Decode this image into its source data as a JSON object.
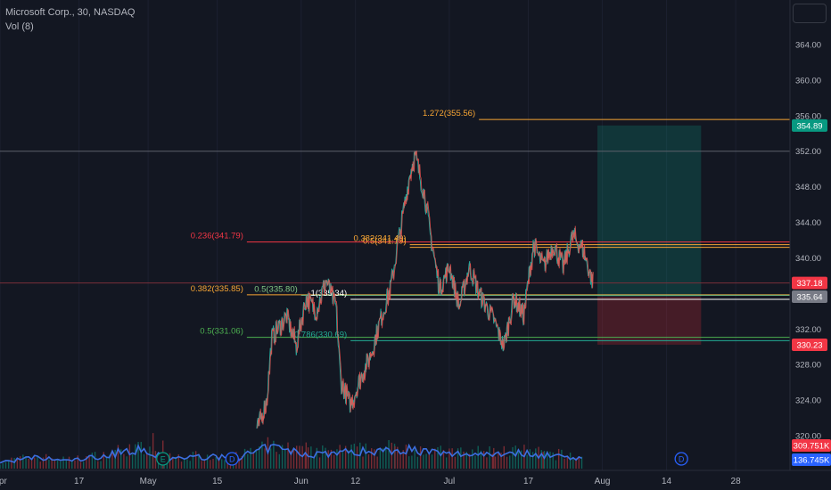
{
  "legend": {
    "symbol_line": "Microsoft Corp., 30, NASDAQ",
    "volume_line": "Vol (8)"
  },
  "chart_data": {
    "type": "candlestick",
    "symbol": "Microsoft Corp.",
    "interval": "30",
    "exchange": "NASDAQ",
    "y_axis": {
      "ticks": [
        "364.00",
        "360.00",
        "356.00",
        "352.00",
        "348.00",
        "344.00",
        "340.00",
        "336.00",
        "332.00",
        "328.00",
        "324.00",
        "320.00"
      ],
      "range": [
        318.5,
        366.8
      ]
    },
    "x_axis": {
      "tick_labels": [
        "Apr",
        "17",
        "May",
        "15",
        "Jun",
        "12",
        "Jul",
        "17",
        "Aug",
        "14",
        "28"
      ],
      "start": "2023-04-01",
      "end": "2023-09-08"
    },
    "price_path": [
      [
        "2023-05-23",
        320.5
      ],
      [
        "2023-05-25",
        324.0
      ],
      [
        "2023-05-26",
        331.0
      ],
      [
        "2023-05-29",
        333.5
      ],
      [
        "2023-05-31",
        330.0
      ],
      [
        "2023-06-01",
        333.0
      ],
      [
        "2023-06-02",
        335.5
      ],
      [
        "2023-06-04",
        334.0
      ],
      [
        "2023-06-06",
        337.5
      ],
      [
        "2023-06-08",
        334.5
      ],
      [
        "2023-06-09",
        326.0
      ],
      [
        "2023-06-11",
        323.5
      ],
      [
        "2023-06-13",
        326.5
      ],
      [
        "2023-06-15",
        329.0
      ],
      [
        "2023-06-17",
        333.0
      ],
      [
        "2023-06-19",
        336.5
      ],
      [
        "2023-06-21",
        343.0
      ],
      [
        "2023-06-23",
        349.5
      ],
      [
        "2023-06-24",
        351.5
      ],
      [
        "2023-06-26",
        347.0
      ],
      [
        "2023-06-27",
        343.0
      ],
      [
        "2023-06-29",
        336.5
      ],
      [
        "2023-07-01",
        339.0
      ],
      [
        "2023-07-03",
        334.5
      ],
      [
        "2023-07-05",
        339.0
      ],
      [
        "2023-07-07",
        336.0
      ],
      [
        "2023-07-10",
        333.0
      ],
      [
        "2023-07-12",
        330.0
      ],
      [
        "2023-07-14",
        335.5
      ],
      [
        "2023-07-16",
        333.5
      ],
      [
        "2023-07-18",
        341.5
      ],
      [
        "2023-07-20",
        339.0
      ],
      [
        "2023-07-22",
        341.5
      ],
      [
        "2023-07-24",
        339.0
      ],
      [
        "2023-07-26",
        342.5
      ],
      [
        "2023-07-28",
        341.0
      ],
      [
        "2023-07-30",
        337.2
      ]
    ],
    "volume_path": [
      [
        "2023-04-01",
        0.18
      ],
      [
        "2023-04-08",
        0.3
      ],
      [
        "2023-04-15",
        0.22
      ],
      [
        "2023-04-22",
        0.35
      ],
      [
        "2023-04-28",
        0.55
      ],
      [
        "2023-05-05",
        0.28
      ],
      [
        "2023-05-12",
        0.33
      ],
      [
        "2023-05-19",
        0.3
      ],
      [
        "2023-05-26",
        0.6
      ],
      [
        "2023-06-02",
        0.4
      ],
      [
        "2023-06-09",
        0.45
      ],
      [
        "2023-06-16",
        0.5
      ],
      [
        "2023-06-23",
        0.55
      ],
      [
        "2023-06-30",
        0.4
      ],
      [
        "2023-07-07",
        0.42
      ],
      [
        "2023-07-14",
        0.45
      ],
      [
        "2023-07-21",
        0.38
      ],
      [
        "2023-07-28",
        0.3
      ]
    ],
    "volume_spikes": [
      [
        "2023-05-02",
        0.95
      ],
      [
        "2023-05-04",
        0.75
      ],
      [
        "2023-06-02",
        0.7
      ],
      [
        "2023-06-20",
        0.6
      ],
      [
        "2023-07-10",
        0.55
      ],
      [
        "2023-07-20",
        0.45
      ]
    ],
    "horizontal_lines": [
      {
        "price": 352.0,
        "start": "2023-04-01",
        "color": "#5d606b"
      },
      {
        "price": 337.18,
        "start": "2023-04-01",
        "color": "#7a2f3a"
      }
    ],
    "fib_levels": [
      {
        "label": "1.272(355.56)",
        "price": 355.56,
        "start": "2023-07-07",
        "color": "#f7a534"
      },
      {
        "label": "0.236(341.79)",
        "price": 341.79,
        "start": "2023-05-21",
        "color": "#f23645"
      },
      {
        "label": "0.382(335.85)",
        "price": 335.85,
        "start": "2023-05-21",
        "color": "#f7a534"
      },
      {
        "label": "0.5(335.80)",
        "price": 335.8,
        "start": "2023-06-01",
        "color": "#81c784"
      },
      {
        "label": "1(335.34)",
        "price": 335.34,
        "start": "2023-06-11",
        "color": "#ffffff"
      },
      {
        "label": "0.5(331.06)",
        "price": 331.06,
        "start": "2023-05-21",
        "color": "#4caf50"
      },
      {
        "label": "0.382(341.49)",
        "price": 341.49,
        "start": "2023-06-23",
        "color": "#f7a534"
      },
      {
        "label": "0.5(341.19)",
        "price": 341.19,
        "start": "2023-06-23",
        "color": "#f7a534"
      },
      {
        "label": "0.786(330.69)",
        "price": 330.69,
        "start": "2023-06-11",
        "color": "#22ab94"
      }
    ],
    "position_tool": {
      "start": "2023-07-31",
      "end": "2023-08-21",
      "target": 354.89,
      "entry": 335.64,
      "stop": 330.23
    },
    "price_labels": [
      {
        "value": "354.89",
        "price": 354.89,
        "color": "#089981"
      },
      {
        "value": "337.18",
        "price": 337.18,
        "color": "#f23645"
      },
      {
        "value": "335.64",
        "price": 335.64,
        "color": "#787b86"
      },
      {
        "value": "330.23",
        "price": 330.23,
        "color": "#f23645"
      }
    ],
    "volume_labels": [
      {
        "value": "309.751K",
        "color": "#f23645"
      },
      {
        "value": "136.745K",
        "color": "#2962ff"
      }
    ],
    "event_markers": [
      {
        "label": "E",
        "date": "2023-05-04",
        "color": "#089981"
      },
      {
        "label": "D",
        "date": "2023-05-18",
        "color": "#2962ff"
      },
      {
        "label": "D",
        "date": "2023-08-17",
        "color": "#2962ff"
      }
    ]
  }
}
